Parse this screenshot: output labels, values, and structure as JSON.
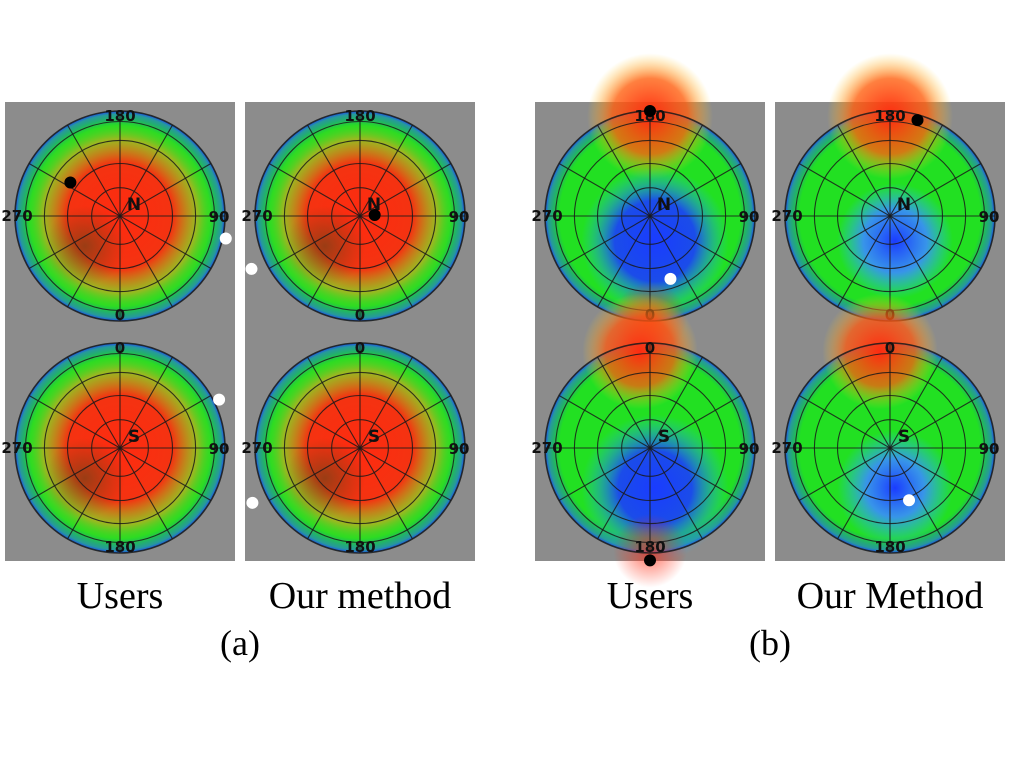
{
  "figure": {
    "groups": [
      {
        "id": "a",
        "label": "(a)",
        "columns": [
          {
            "caption": "Users"
          },
          {
            "caption": "Our method"
          }
        ],
        "plots": [
          {
            "col": 0,
            "row": 0,
            "pole": "N",
            "top_tick": "180",
            "bottom_tick": "0",
            "left_tick": "270",
            "right_tick": "90",
            "scheme": "red-center",
            "dots": [
              {
                "color": "#000000",
                "az": 236,
                "r": 0.57
              },
              {
                "color": "#ffffff",
                "az": 78,
                "r": 1.03
              }
            ]
          },
          {
            "col": 1,
            "row": 0,
            "pole": "N",
            "top_tick": "180",
            "bottom_tick": "0",
            "left_tick": "270",
            "right_tick": "90",
            "scheme": "red-center",
            "dots": [
              {
                "color": "#000000",
                "az": 94,
                "r": 0.14
              },
              {
                "color": "#ffffff",
                "az": 296,
                "r": 1.15
              }
            ]
          },
          {
            "col": 0,
            "row": 1,
            "pole": "S",
            "top_tick": "0",
            "bottom_tick": "180",
            "left_tick": "270",
            "right_tick": "90",
            "scheme": "red-center",
            "dots": [
              {
                "color": "#ffffff",
                "az": 64,
                "r": 1.05
              }
            ]
          },
          {
            "col": 1,
            "row": 1,
            "pole": "S",
            "top_tick": "0",
            "bottom_tick": "180",
            "left_tick": "270",
            "right_tick": "90",
            "scheme": "red-center",
            "dots": [
              {
                "color": "#ffffff",
                "az": 243,
                "r": 1.15
              }
            ]
          }
        ]
      },
      {
        "id": "b",
        "label": "(b)",
        "columns": [
          {
            "caption": "Users"
          },
          {
            "caption": "Our Method"
          }
        ],
        "plots": [
          {
            "col": 0,
            "row": 0,
            "pole": "N",
            "top_tick": "180",
            "bottom_tick": "0",
            "left_tick": "270",
            "right_tick": "90",
            "scheme": "blue-south",
            "dots": [
              {
                "color": "#000000",
                "az": 180,
                "r": 1.0
              },
              {
                "color": "#ffffff",
                "az": 18,
                "r": 0.63
              }
            ]
          },
          {
            "col": 1,
            "row": 0,
            "pole": "N",
            "top_tick": "180",
            "bottom_tick": "0",
            "left_tick": "270",
            "right_tick": "90",
            "scheme": "blue-south-light",
            "dots": [
              {
                "color": "#000000",
                "az": 164,
                "r": 0.95
              }
            ]
          },
          {
            "col": 0,
            "row": 1,
            "pole": "S",
            "top_tick": "0",
            "bottom_tick": "180",
            "left_tick": "270",
            "right_tick": "90",
            "scheme": "blue-center-s",
            "dots": [
              {
                "color": "#000000",
                "az": 180,
                "r": 1.07
              }
            ]
          },
          {
            "col": 1,
            "row": 1,
            "pole": "S",
            "top_tick": "0",
            "bottom_tick": "180",
            "left_tick": "270",
            "right_tick": "90",
            "scheme": "blue-center-s-light",
            "dots": [
              {
                "color": "#ffffff",
                "az": 160,
                "r": 0.53
              }
            ]
          }
        ]
      }
    ],
    "colors": {
      "panel_bg": "#8c8c8c",
      "red": "#ff2a10",
      "green": "#22e022",
      "blue": "#1a3cff",
      "grid": "#1a1a1a"
    }
  }
}
